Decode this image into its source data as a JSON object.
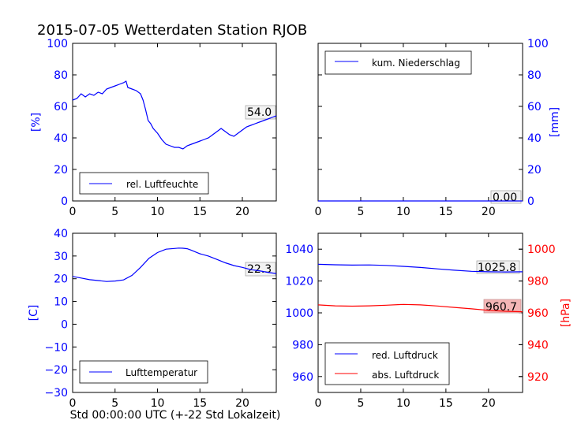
{
  "title": "2015-07-05 Wetterdaten Station RJOB",
  "colors": {
    "blue": "#0000ff",
    "red": "#ff0000",
    "black": "#000000"
  },
  "chart_data": [
    {
      "id": "humidity",
      "type": "line",
      "ylabel": "[%]",
      "xlim": [
        0,
        24
      ],
      "ylim": [
        0,
        100
      ],
      "xticks": [
        0,
        5,
        10,
        15,
        20
      ],
      "yticks": [
        0,
        20,
        40,
        60,
        80,
        100
      ],
      "legend": "lower-left",
      "series": [
        {
          "name": "rel. Luftfeuchte",
          "color": "#0000ff",
          "x": [
            0,
            0.5,
            1,
            1.5,
            2,
            2.5,
            3,
            3.5,
            4,
            4.5,
            5,
            5.5,
            6,
            6.3,
            6.5,
            7,
            7.5,
            8,
            8.3,
            8.6,
            8.9,
            9.2,
            9.5,
            10,
            10.5,
            11,
            11.5,
            12,
            12.5,
            13,
            13.5,
            14,
            14.5,
            15,
            15.5,
            16,
            16.5,
            17,
            17.5,
            18,
            18.5,
            19,
            19.5,
            20,
            20.5,
            21,
            21.5,
            22,
            22.5,
            23,
            23.5,
            24
          ],
          "y": [
            64,
            65,
            68,
            66,
            68,
            67,
            69,
            68,
            71,
            72,
            73,
            74,
            75,
            76,
            72,
            71,
            70,
            68,
            64,
            58,
            51,
            49,
            46,
            43,
            39,
            36,
            35,
            34,
            34,
            33,
            35,
            36,
            37,
            38,
            39,
            40,
            42,
            44,
            46,
            44,
            42,
            41,
            43,
            45,
            47,
            48,
            49,
            50,
            51,
            52,
            53,
            54
          ]
        }
      ],
      "last_value": "54.0"
    },
    {
      "id": "precipitation",
      "type": "line",
      "ylabel": "[mm]",
      "xlim": [
        0,
        24
      ],
      "ylim": [
        0,
        100
      ],
      "xticks": [
        0,
        5,
        10,
        15,
        20
      ],
      "yticks": [
        0,
        20,
        40,
        60,
        80,
        100
      ],
      "legend": "upper-left",
      "series": [
        {
          "name": "kum. Niederschlag",
          "color": "#0000ff",
          "x": [
            0,
            24
          ],
          "y": [
            0,
            0
          ]
        }
      ],
      "last_value": "0.00"
    },
    {
      "id": "temperature",
      "type": "line",
      "ylabel": "[C]",
      "xlabel": "Std 00:00:00 UTC (+-22 Std Lokalzeit)",
      "xlim": [
        0,
        24
      ],
      "ylim": [
        -30,
        40
      ],
      "xticks": [
        0,
        5,
        10,
        15,
        20
      ],
      "yticks": [
        -30,
        -20,
        -10,
        0,
        10,
        20,
        30,
        40
      ],
      "legend": "lower-left",
      "series": [
        {
          "name": "Lufttemperatur",
          "color": "#0000ff",
          "x": [
            0,
            1,
            2,
            3,
            4,
            5,
            6,
            7,
            8,
            9,
            10,
            11,
            12,
            12.5,
            13,
            13.5,
            14,
            15,
            16,
            17,
            18,
            19,
            20,
            21,
            22,
            23,
            24
          ],
          "y": [
            21,
            20.3,
            19.6,
            19.2,
            18.8,
            19,
            19.5,
            21.5,
            25,
            29,
            31.5,
            33,
            33.3,
            33.5,
            33.4,
            33.2,
            32.5,
            31,
            30,
            28.5,
            27,
            25.8,
            25,
            24,
            23.5,
            22.8,
            22.3
          ]
        }
      ],
      "last_value": "22.3"
    },
    {
      "id": "pressure",
      "type": "line",
      "ylim": [
        950,
        1050
      ],
      "ylim_right": [
        910,
        1010
      ],
      "ylabel_right": "[hPa]",
      "xlim": [
        0,
        24
      ],
      "xticks": [
        0,
        5,
        10,
        15,
        20
      ],
      "yticks": [
        960,
        980,
        1000,
        1020,
        1040
      ],
      "yticks_right": [
        920,
        940,
        960,
        980,
        1000
      ],
      "legend": "lower-left",
      "series": [
        {
          "name": "red. Luftdruck",
          "color": "#0000ff",
          "axis": "left",
          "x": [
            0,
            2,
            4,
            6,
            8,
            10,
            12,
            14,
            16,
            18,
            20,
            22,
            24
          ],
          "y": [
            1030.5,
            1030.2,
            1030.0,
            1030.1,
            1029.8,
            1029.2,
            1028.5,
            1027.6,
            1026.8,
            1026.1,
            1025.8,
            1025.7,
            1025.8
          ]
        },
        {
          "name": "abs. Luftdruck",
          "color": "#ff0000",
          "axis": "right",
          "x": [
            0,
            2,
            4,
            6,
            8,
            10,
            12,
            14,
            16,
            18,
            20,
            22,
            24
          ],
          "y": [
            965.0,
            964.4,
            964.2,
            964.4,
            964.8,
            965.3,
            965.0,
            964.3,
            963.4,
            962.5,
            961.6,
            961.0,
            960.7
          ]
        }
      ],
      "last_values": [
        "1025.8",
        "960.7"
      ]
    }
  ]
}
